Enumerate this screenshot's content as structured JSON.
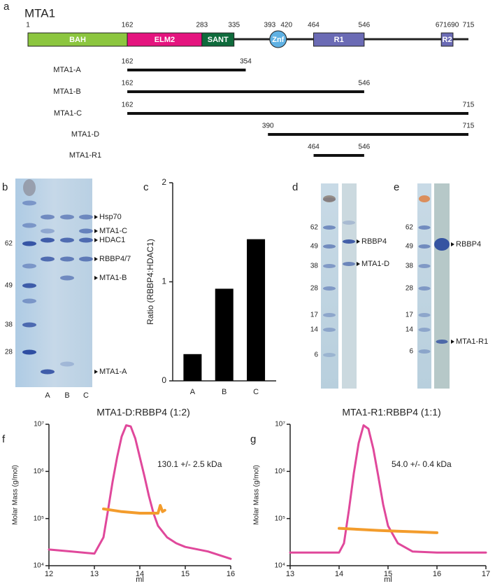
{
  "panel_labels": [
    "a",
    "b",
    "c",
    "d",
    "e",
    "f",
    "g"
  ],
  "protein_map": {
    "title": "MTA1",
    "residue_labels": [
      1,
      162,
      283,
      335,
      393,
      420,
      464,
      546,
      671,
      690,
      715
    ],
    "domains": [
      {
        "label": "BAH",
        "start": 1,
        "end": 162,
        "color": "#8cc63f",
        "shape": "box"
      },
      {
        "label": "ELM2",
        "start": 162,
        "end": 283,
        "color": "#e5147f",
        "shape": "box"
      },
      {
        "label": "SANT",
        "start": 283,
        "end": 335,
        "color": "#0f6b3c",
        "shape": "box"
      },
      {
        "label": "Znf",
        "start": 393,
        "end": 420,
        "color": "#5fb1e3",
        "shape": "circle"
      },
      {
        "label": "R1",
        "start": 464,
        "end": 546,
        "color": "#6b6bb5",
        "shape": "box"
      },
      {
        "label": "R2",
        "start": 671,
        "end": 690,
        "color": "#6b6bb5",
        "shape": "box"
      }
    ],
    "constructs": [
      {
        "name": "MTA1-A",
        "start": 162,
        "end": 354
      },
      {
        "name": "MTA1-B",
        "start": 162,
        "end": 546
      },
      {
        "name": "MTA1-C",
        "start": 162,
        "end": 715
      },
      {
        "name": "MTA1-D",
        "start": 390,
        "end": 715
      },
      {
        "name": "MTA1-R1",
        "start": 464,
        "end": 546
      }
    ]
  },
  "gels": [
    {
      "markers": [
        62,
        49,
        38,
        28
      ],
      "lanes": [
        "A",
        "B",
        "C"
      ],
      "bands": [
        "Hsp70",
        "MTA1-C",
        "HDAC1",
        "RBBP4/7",
        "MTA1-B",
        "MTA1-A"
      ]
    },
    {
      "markers": [
        62,
        49,
        38,
        28,
        17,
        14,
        6
      ],
      "bands": [
        "RBBP4",
        "MTA1-D"
      ]
    },
    {
      "markers": [
        62,
        49,
        38,
        28,
        17,
        14,
        6
      ],
      "bands": [
        "RBBP4",
        "MTA1-R1"
      ]
    }
  ],
  "chart_data": [
    {
      "type": "bar",
      "y_label": "Ratio (RBBP4:HDAC1)",
      "categories": [
        "A",
        "B",
        "C"
      ],
      "values": [
        0.27,
        0.93,
        1.43
      ],
      "color": "#000000",
      "ylim": [
        0,
        2
      ],
      "yticks": [
        0,
        1,
        2
      ]
    },
    {
      "type": "line",
      "title": "MTA1-D:RBBP4 (1:2)",
      "annotation": "130.1 +/- 2.5 kDa",
      "x_label": "ml",
      "y_label": "Molar Mass (g/mol)",
      "xlim": [
        12,
        16
      ],
      "xticks": [
        12,
        13,
        14,
        15,
        16
      ],
      "log_y": true,
      "ylim": [
        10000,
        10000000
      ],
      "yticks": [
        {
          "value": 10000,
          "label": "10⁴"
        },
        {
          "value": 100000,
          "label": "10⁵"
        },
        {
          "value": 1000000,
          "label": "10⁶"
        },
        {
          "value": 10000000,
          "label": "10⁷"
        }
      ],
      "series": [
        {
          "color": "#e0489b",
          "x": [
            12,
            12.5,
            13,
            13.2,
            13.3,
            13.4,
            13.5,
            13.6,
            13.7,
            13.8,
            13.9,
            14.0,
            14.1,
            14.2,
            14.3,
            14.4,
            14.6,
            14.8,
            15,
            15.5,
            16
          ],
          "values": [
            22000,
            20000,
            18000,
            40000,
            150000,
            600000,
            2000000,
            5500000,
            9500000,
            9000000,
            5000000,
            2000000,
            800000,
            300000,
            130000,
            70000,
            40000,
            30000,
            25000,
            20000,
            14000
          ]
        },
        {
          "color": "#f39c2c",
          "x": [
            13.2,
            13.4,
            13.6,
            13.8,
            14.0,
            14.2,
            14.4,
            14.45,
            14.5,
            14.55
          ],
          "values": [
            160000,
            150000,
            140000,
            135000,
            130000,
            130000,
            130000,
            190000,
            140000,
            150000
          ]
        }
      ]
    },
    {
      "type": "line",
      "title": "MTA1-R1:RBBP4 (1:1)",
      "annotation": "54.0 +/- 0.4 kDa",
      "x_label": "ml",
      "y_label": "Molar Mass (g/mol)",
      "xlim": [
        13,
        17
      ],
      "xticks": [
        13,
        14,
        15,
        16,
        17
      ],
      "log_y": true,
      "ylim": [
        10000,
        10000000
      ],
      "yticks": [
        {
          "value": 10000,
          "label": "10⁴"
        },
        {
          "value": 100000,
          "label": "10⁵"
        },
        {
          "value": 1000000,
          "label": "10⁶"
        },
        {
          "value": 10000000,
          "label": "10⁷"
        }
      ],
      "series": [
        {
          "color": "#e0489b",
          "x": [
            13,
            13.5,
            14,
            14.1,
            14.2,
            14.3,
            14.4,
            14.5,
            14.6,
            14.7,
            14.8,
            14.9,
            15,
            15.2,
            15.5,
            16,
            16.5,
            17
          ],
          "values": [
            19000,
            19000,
            19000,
            30000,
            150000,
            900000,
            4000000,
            9500000,
            8000000,
            3000000,
            800000,
            200000,
            70000,
            30000,
            20000,
            19000,
            19000,
            19000
          ]
        },
        {
          "color": "#f39c2c",
          "x": [
            14.0,
            14.4,
            14.8,
            15.2,
            15.6,
            16.0
          ],
          "values": [
            62000,
            59000,
            56000,
            54000,
            52000,
            50000
          ]
        }
      ]
    }
  ]
}
